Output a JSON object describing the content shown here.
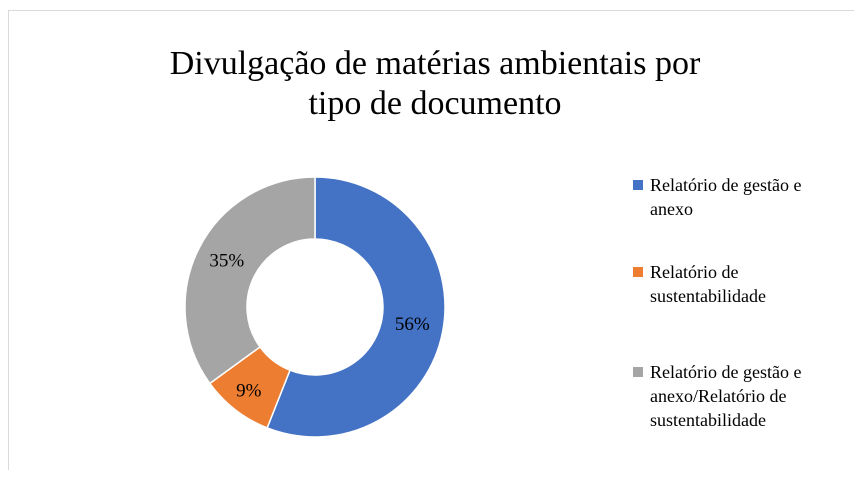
{
  "chart_data": {
    "type": "donut",
    "title": "Divulgação de matérias ambientais por tipo de documento",
    "categories": [
      "Relatório de gestão e anexo",
      "Relatório de sustentabilidade",
      "Relatório de gestão e anexo/Relatório de sustentabilidade"
    ],
    "values": [
      56,
      9,
      35
    ],
    "value_labels": [
      "56%",
      "9%",
      "35%"
    ],
    "colors": [
      "#4472c4",
      "#ed7d31",
      "#a5a5a5"
    ],
    "legend": "right"
  }
}
